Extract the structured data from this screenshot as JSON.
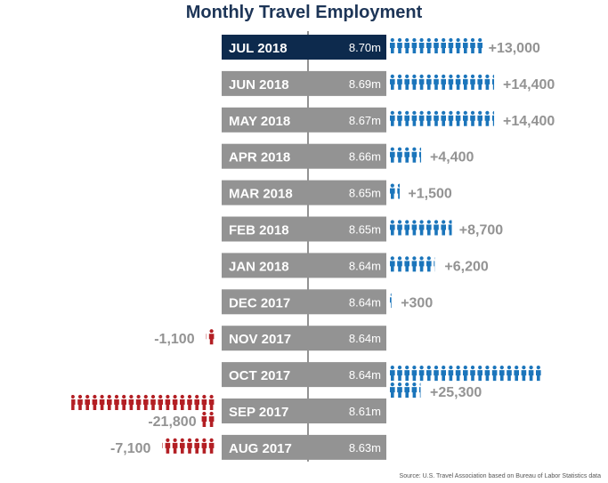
{
  "title": "Monthly Travel Employment",
  "source": "Source: U.S. Travel Association based on Bureau of Labor Statistics data",
  "colors": {
    "latest_bar": "#0d2a4d",
    "bar": "#939393",
    "gain": "#1b75bb",
    "loss": "#b31f24",
    "change_text": "#939393",
    "spine": "#939393"
  },
  "chart_data": {
    "type": "bar",
    "title": "Monthly Travel Employment",
    "categories": [
      "JUL 2018",
      "JUN 2018",
      "MAY 2018",
      "APR 2018",
      "MAR 2018",
      "FEB 2018",
      "JAN 2018",
      "DEC 2017",
      "NOV 2017",
      "OCT 2017",
      "SEP 2017",
      "AUG 2017"
    ],
    "employment_labels": [
      "8.70m",
      "8.69m",
      "8.67m",
      "8.66m",
      "8.65m",
      "8.65m",
      "8.64m",
      "8.64m",
      "8.64m",
      "8.64m",
      "8.61m",
      "8.63m"
    ],
    "employment_millions": [
      8.7,
      8.69,
      8.67,
      8.66,
      8.65,
      8.65,
      8.64,
      8.64,
      8.64,
      8.64,
      8.61,
      8.63
    ],
    "change": [
      13000,
      14400,
      14400,
      4400,
      1500,
      8700,
      6200,
      300,
      -1100,
      25300,
      -21800,
      -7100
    ],
    "change_labels": [
      "+13,000",
      "+14,400",
      "+14,400",
      "+4,400",
      "+1,500",
      "+8,700",
      "+6,200",
      "+300",
      "-1,100",
      "+25,300",
      "-21,800",
      "-7,100"
    ],
    "people_per_icon": 1000,
    "highlight": "JUL 2018"
  }
}
